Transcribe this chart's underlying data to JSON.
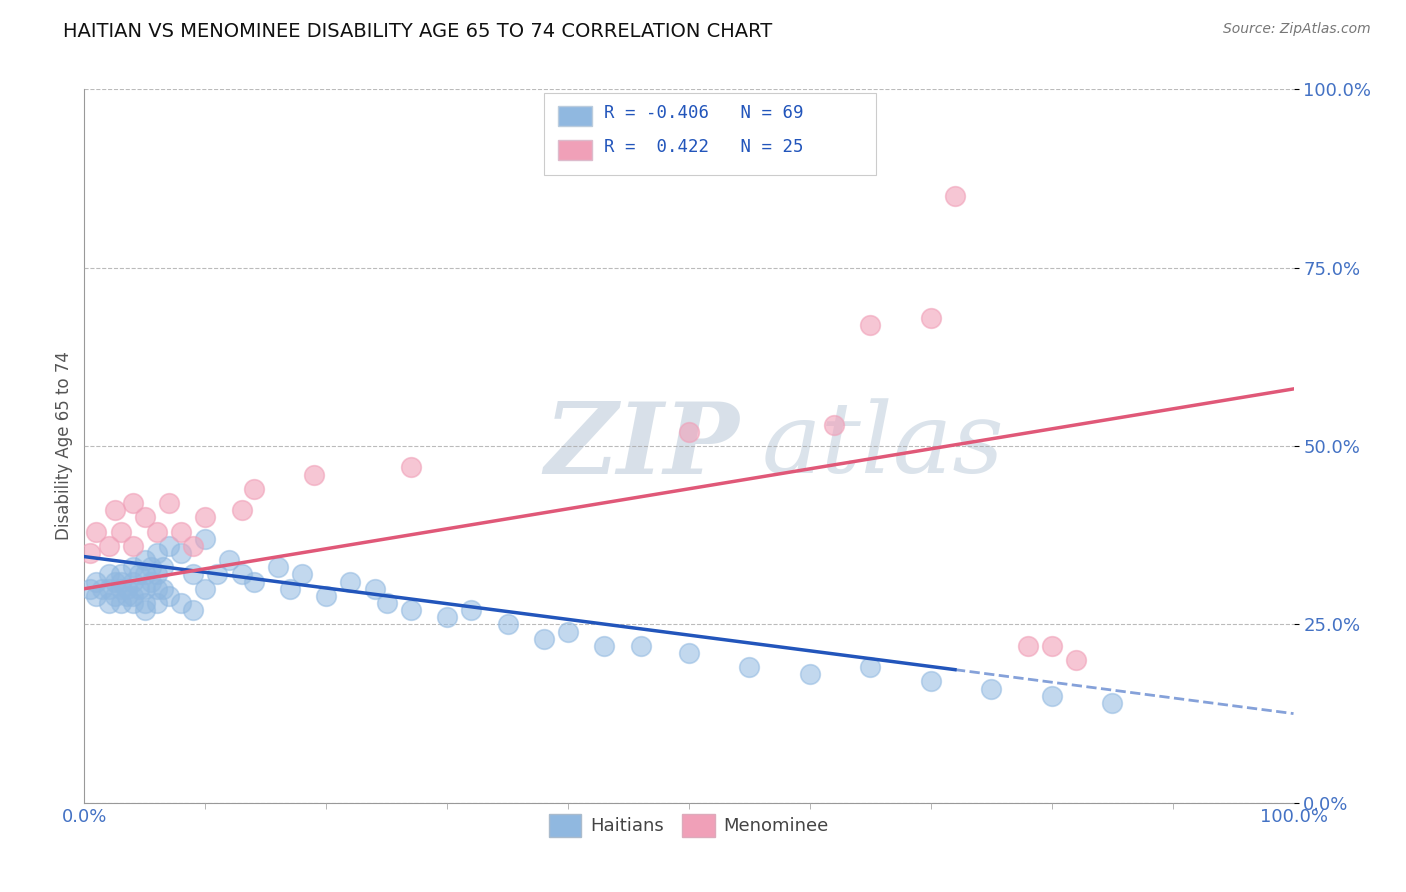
{
  "title": "HAITIAN VS MENOMINEE DISABILITY AGE 65 TO 74 CORRELATION CHART",
  "source": "Source: ZipAtlas.com",
  "ylabel": "Disability Age 65 to 74",
  "ytick_labels": [
    "0.0%",
    "25.0%",
    "50.0%",
    "75.0%",
    "100.0%"
  ],
  "ytick_values": [
    0.0,
    0.25,
    0.5,
    0.75,
    1.0
  ],
  "blue_color": "#90b8e0",
  "pink_color": "#f0a0b8",
  "blue_line_color": "#2255bb",
  "pink_line_color": "#e05878",
  "title_color": "#111111",
  "axis_label_color": "#4472c4",
  "grid_color": "#aaaaaa",
  "background_color": "#ffffff",
  "haitians_x": [
    0.005,
    0.01,
    0.01,
    0.015,
    0.02,
    0.02,
    0.02,
    0.025,
    0.025,
    0.03,
    0.03,
    0.03,
    0.03,
    0.035,
    0.035,
    0.04,
    0.04,
    0.04,
    0.04,
    0.045,
    0.045,
    0.05,
    0.05,
    0.05,
    0.05,
    0.05,
    0.055,
    0.055,
    0.06,
    0.06,
    0.06,
    0.06,
    0.065,
    0.065,
    0.07,
    0.07,
    0.08,
    0.08,
    0.09,
    0.09,
    0.1,
    0.1,
    0.11,
    0.12,
    0.13,
    0.14,
    0.16,
    0.17,
    0.18,
    0.2,
    0.22,
    0.24,
    0.25,
    0.27,
    0.3,
    0.32,
    0.35,
    0.38,
    0.4,
    0.43,
    0.46,
    0.5,
    0.55,
    0.6,
    0.65,
    0.7,
    0.75,
    0.8,
    0.85
  ],
  "haitians_y": [
    0.3,
    0.29,
    0.31,
    0.3,
    0.32,
    0.28,
    0.3,
    0.31,
    0.29,
    0.32,
    0.3,
    0.28,
    0.31,
    0.3,
    0.29,
    0.33,
    0.31,
    0.29,
    0.28,
    0.32,
    0.3,
    0.34,
    0.32,
    0.3,
    0.28,
    0.27,
    0.33,
    0.31,
    0.35,
    0.32,
    0.3,
    0.28,
    0.33,
    0.3,
    0.36,
    0.29,
    0.35,
    0.28,
    0.32,
    0.27,
    0.37,
    0.3,
    0.32,
    0.34,
    0.32,
    0.31,
    0.33,
    0.3,
    0.32,
    0.29,
    0.31,
    0.3,
    0.28,
    0.27,
    0.26,
    0.27,
    0.25,
    0.23,
    0.24,
    0.22,
    0.22,
    0.21,
    0.19,
    0.18,
    0.19,
    0.17,
    0.16,
    0.15,
    0.14
  ],
  "menominee_x": [
    0.005,
    0.01,
    0.02,
    0.025,
    0.03,
    0.04,
    0.04,
    0.05,
    0.06,
    0.07,
    0.08,
    0.09,
    0.1,
    0.13,
    0.14,
    0.19,
    0.27,
    0.5,
    0.62,
    0.65,
    0.7,
    0.72,
    0.78,
    0.8,
    0.82
  ],
  "menominee_y": [
    0.35,
    0.38,
    0.36,
    0.41,
    0.38,
    0.42,
    0.36,
    0.4,
    0.38,
    0.42,
    0.38,
    0.36,
    0.4,
    0.41,
    0.44,
    0.46,
    0.47,
    0.52,
    0.53,
    0.67,
    0.68,
    0.85,
    0.22,
    0.22,
    0.2
  ],
  "xlim": [
    0.0,
    1.0
  ],
  "ylim": [
    0.0,
    1.0
  ],
  "blue_trend_split": 0.72,
  "pink_trend_intercept": 0.3,
  "pink_trend_slope": 0.28,
  "blue_trend_intercept": 0.345,
  "blue_trend_slope": -0.22
}
